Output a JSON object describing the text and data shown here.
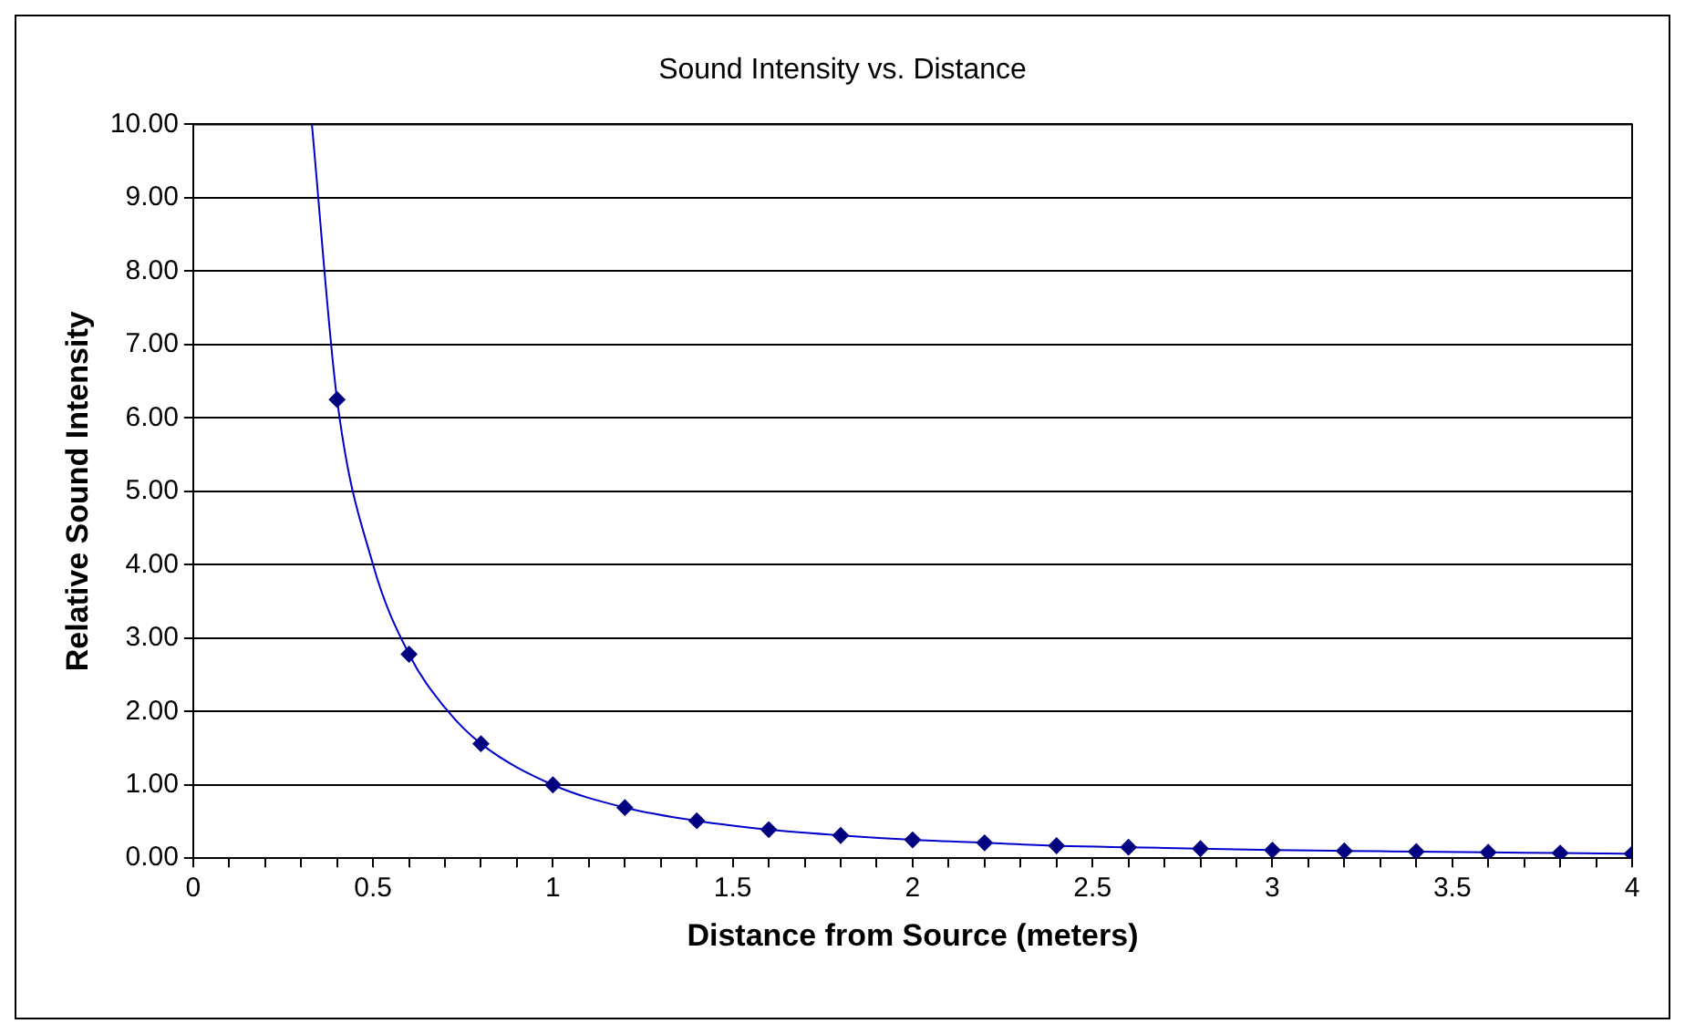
{
  "chart_data": {
    "type": "scatter",
    "title": "Sound Intensity vs. Distance",
    "xlabel": "Distance from Source (meters)",
    "ylabel": "Relative Sound Intensity",
    "series": [
      {
        "type": "line",
        "color": "#0000cc",
        "marker": "none",
        "x": [
          0.33,
          0.4,
          0.5,
          0.6,
          0.7,
          0.8,
          1,
          1.2,
          1.4,
          1.6,
          1.8,
          2,
          2.2,
          2.4,
          2.6,
          2.8,
          3,
          3.2,
          3.4,
          3.6,
          3.8,
          4
        ],
        "values": [
          10,
          6.25,
          4.0,
          2.78,
          2.05,
          1.56,
          1.0,
          0.69,
          0.51,
          0.39,
          0.31,
          0.25,
          0.21,
          0.17,
          0.15,
          0.13,
          0.11,
          0.1,
          0.09,
          0.08,
          0.07,
          0.06
        ]
      },
      {
        "type": "scatter",
        "color": "#000080",
        "marker": "diamond",
        "x": [
          0.4,
          0.6,
          0.8,
          1,
          1.2,
          1.4,
          1.6,
          1.8,
          2,
          2.2,
          2.4,
          2.6,
          2.8,
          3,
          3.2,
          3.4,
          3.6,
          3.8,
          4
        ],
        "values": [
          6.25,
          2.78,
          1.56,
          1.0,
          0.69,
          0.51,
          0.39,
          0.31,
          0.25,
          0.21,
          0.17,
          0.15,
          0.13,
          0.11,
          0.1,
          0.09,
          0.08,
          0.07,
          0.06
        ]
      }
    ],
    "xlim": [
      0,
      4
    ],
    "xticks": [
      0,
      {
        "value": 0.1,
        "label": null
      },
      {
        "value": 0.2,
        "label": null
      },
      {
        "value": 0.3,
        "label": null
      },
      {
        "value": 0.4,
        "label": null
      },
      0.5,
      {
        "value": 0.6,
        "label": null
      },
      {
        "value": 0.7,
        "label": null
      },
      {
        "value": 0.8,
        "label": null
      },
      {
        "value": 0.9,
        "label": null
      },
      1,
      {
        "value": 1.1,
        "label": null
      },
      {
        "value": 1.2,
        "label": null
      },
      {
        "value": 1.3,
        "label": null
      },
      {
        "value": 1.4,
        "label": null
      },
      1.5,
      {
        "value": 1.6,
        "label": null
      },
      {
        "value": 1.7,
        "label": null
      },
      {
        "value": 1.8,
        "label": null
      },
      {
        "value": 1.9,
        "label": null
      },
      2,
      {
        "value": 2.1,
        "label": null
      },
      {
        "value": 2.2,
        "label": null
      },
      {
        "value": 2.3,
        "label": null
      },
      {
        "value": 2.4,
        "label": null
      },
      2.5,
      {
        "value": 2.6,
        "label": null
      },
      {
        "value": 2.7,
        "label": null
      },
      {
        "value": 2.8,
        "label": null
      },
      {
        "value": 2.9,
        "label": null
      },
      3,
      {
        "value": 3.1,
        "label": null
      },
      {
        "value": 3.2,
        "label": null
      },
      {
        "value": 3.3,
        "label": null
      },
      {
        "value": 3.4,
        "label": null
      },
      3.5,
      {
        "value": 3.6,
        "label": null
      },
      {
        "value": 3.7,
        "label": null
      },
      {
        "value": 3.8,
        "label": null
      },
      {
        "value": 3.9,
        "label": null
      },
      4
    ],
    "ylim": [
      0,
      10
    ],
    "yticks": [
      {
        "value": 0,
        "label": "0.00"
      },
      {
        "value": 1,
        "label": "1.00"
      },
      {
        "value": 2,
        "label": "2.00"
      },
      {
        "value": 3,
        "label": "3.00"
      },
      {
        "value": 4,
        "label": "4.00"
      },
      {
        "value": 5,
        "label": "5.00"
      },
      {
        "value": 6,
        "label": "6.00"
      },
      {
        "value": 7,
        "label": "7.00"
      },
      {
        "value": 8,
        "label": "8.00"
      },
      {
        "value": 9,
        "label": "9.00"
      },
      {
        "value": 10,
        "label": "10.00"
      }
    ],
    "grid": "y",
    "legend": false
  }
}
